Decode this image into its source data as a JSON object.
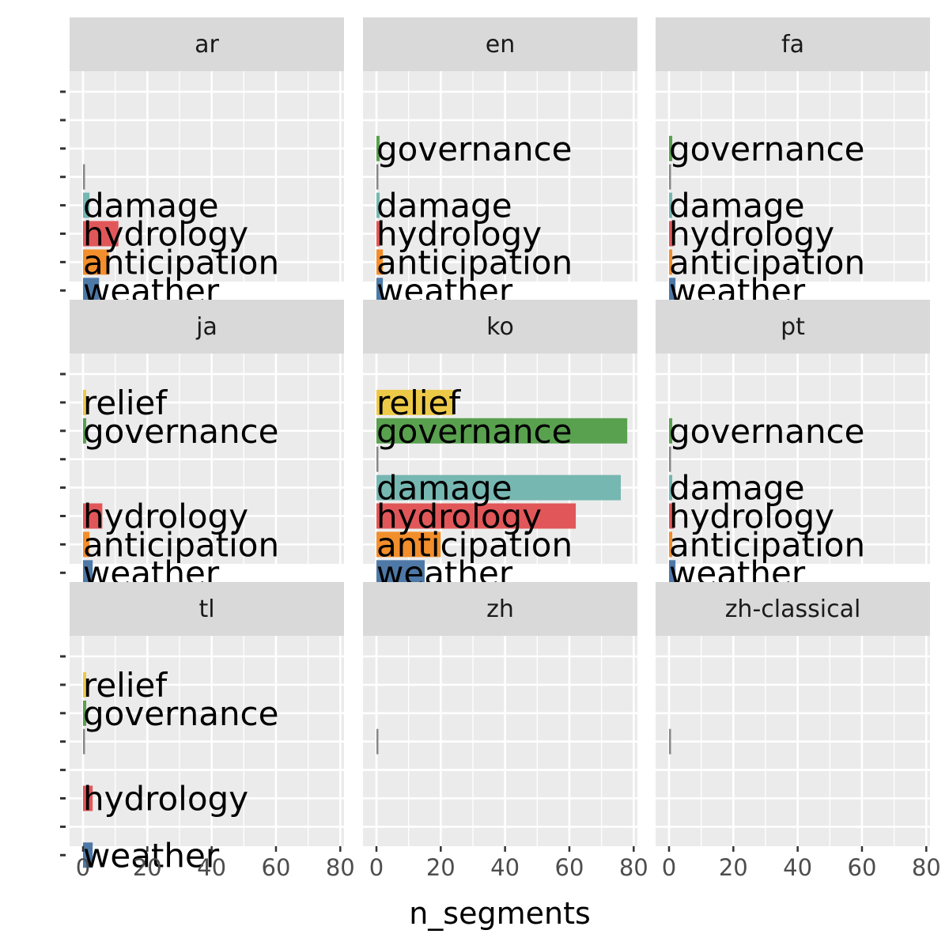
{
  "chart_data": {
    "type": "bar",
    "orientation": "horizontal",
    "layout": "facet_wrap 3x3",
    "xlabel": "n_segments",
    "ylabel": "",
    "xlim": [
      0,
      80
    ],
    "x_ticks": [
      "0",
      "20",
      "40",
      "60",
      "80"
    ],
    "grid": true,
    "legend": "none",
    "categories": [
      "weather",
      "anticipation",
      "hydrology",
      "damage",
      "",
      "governance",
      "relief",
      ""
    ],
    "category_colors": {
      "weather": "#4E79A7",
      "anticipation": "#F28E2B",
      "hydrology": "#E15759",
      "damage": "#76B7B2",
      "governance": "#59A14F",
      "relief": "#EDC948",
      "": "#888888"
    },
    "facets": [
      {
        "name": "ar",
        "bars": [
          {
            "category": "weather",
            "value": 5
          },
          {
            "category": "anticipation",
            "value": 8
          },
          {
            "category": "hydrology",
            "value": 11
          },
          {
            "category": "damage",
            "value": 2
          },
          {
            "category": "",
            "value": 0.5
          }
        ]
      },
      {
        "name": "en",
        "bars": [
          {
            "category": "weather",
            "value": 2
          },
          {
            "category": "anticipation",
            "value": 2
          },
          {
            "category": "hydrology",
            "value": 1
          },
          {
            "category": "damage",
            "value": 1
          },
          {
            "category": "governance",
            "value": 1
          },
          {
            "category": "",
            "value": 0.5
          }
        ]
      },
      {
        "name": "fa",
        "bars": [
          {
            "category": "weather",
            "value": 2
          },
          {
            "category": "anticipation",
            "value": 1
          },
          {
            "category": "hydrology",
            "value": 1.5
          },
          {
            "category": "damage",
            "value": 1
          },
          {
            "category": "governance",
            "value": 1
          },
          {
            "category": "",
            "value": 0.5
          }
        ]
      },
      {
        "name": "ja",
        "bars": [
          {
            "category": "weather",
            "value": 3
          },
          {
            "category": "anticipation",
            "value": 2
          },
          {
            "category": "hydrology",
            "value": 6
          },
          {
            "category": "governance",
            "value": 1
          },
          {
            "category": "relief",
            "value": 1
          }
        ]
      },
      {
        "name": "ko",
        "bars": [
          {
            "category": "weather",
            "value": 15
          },
          {
            "category": "anticipation",
            "value": 20
          },
          {
            "category": "hydrology",
            "value": 62
          },
          {
            "category": "damage",
            "value": 76
          },
          {
            "category": "governance",
            "value": 78
          },
          {
            "category": "relief",
            "value": 24
          },
          {
            "category": "",
            "value": 0.5
          }
        ]
      },
      {
        "name": "pt",
        "bars": [
          {
            "category": "weather",
            "value": 2
          },
          {
            "category": "anticipation",
            "value": 1
          },
          {
            "category": "hydrology",
            "value": 1.5
          },
          {
            "category": "damage",
            "value": 1
          },
          {
            "category": "governance",
            "value": 1
          },
          {
            "category": "",
            "value": 0.5
          }
        ]
      },
      {
        "name": "tl",
        "bars": [
          {
            "category": "weather",
            "value": 3
          },
          {
            "category": "hydrology",
            "value": 3
          },
          {
            "category": "governance",
            "value": 1
          },
          {
            "category": "relief",
            "value": 1
          },
          {
            "category": "",
            "value": 0.5
          }
        ]
      },
      {
        "name": "zh",
        "bars": [
          {
            "category": "",
            "value": 0.5
          }
        ]
      },
      {
        "name": "zh-classical",
        "bars": [
          {
            "category": "",
            "value": 0.5
          }
        ]
      }
    ]
  }
}
